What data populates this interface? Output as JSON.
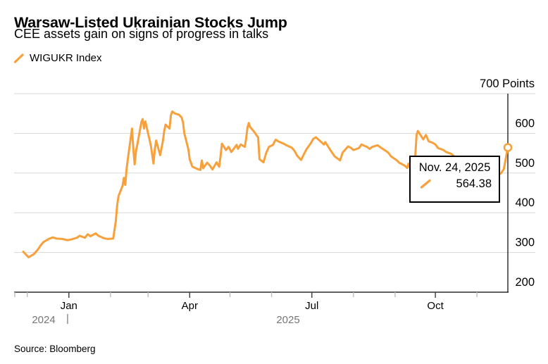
{
  "header": {
    "title": "Warsaw-Listed Ukrainian Stocks Jump",
    "subtitle": "CEE assets gain on signs of progress in talks"
  },
  "legend": {
    "series_label": "WIGUKR Index"
  },
  "tooltip": {
    "date": "Nov. 24, 2025",
    "value": "564.38"
  },
  "footer": {
    "source": "Source: Bloomberg"
  },
  "colors": {
    "line": "#F8A13C",
    "grid": "#D8D8D8",
    "axis": "#2B2B2B",
    "major_tick": "#3C3C3C",
    "minor_tick": "#BDBDBD",
    "muted_text": "#767676",
    "crosshair": "#000000",
    "text": "#000000",
    "background": "#FFFFFF"
  },
  "chart_data": {
    "type": "line",
    "title": "Warsaw-Listed Ukrainian Stocks Jump",
    "subtitle": "CEE assets gain on signs of progress in talks",
    "source": "Source: Bloomberg",
    "legend_position": "top-left",
    "grid": true,
    "unit": "Points",
    "ylim": [
      200,
      700
    ],
    "y_axis": {
      "ticks": [
        {
          "value": 700,
          "label": "700 Points"
        },
        {
          "value": 600,
          "label": "600"
        },
        {
          "value": 500,
          "label": "500"
        },
        {
          "value": 400,
          "label": "400"
        },
        {
          "value": 300,
          "label": "300"
        },
        {
          "value": 200,
          "label": "200"
        }
      ]
    },
    "x_axis": {
      "range": [
        "2024-11-28",
        "2025-11-24"
      ],
      "ticks": [
        {
          "date": "2024-12-01"
        },
        {
          "date": "2025-01-01",
          "label": "Jan"
        },
        {
          "date": "2025-02-01"
        },
        {
          "date": "2025-03-01"
        },
        {
          "date": "2025-04-01",
          "label": "Apr"
        },
        {
          "date": "2025-05-01"
        },
        {
          "date": "2025-06-01"
        },
        {
          "date": "2025-07-01",
          "label": "Jul"
        },
        {
          "date": "2025-08-01"
        },
        {
          "date": "2025-09-01"
        },
        {
          "date": "2025-10-01",
          "label": "Oct"
        },
        {
          "date": "2025-11-01"
        }
      ],
      "year_labels": {
        "left": "2024",
        "divider": "|",
        "right": "2025"
      }
    },
    "last_point": {
      "date": "2025-11-24",
      "value": 564.38
    },
    "series": [
      {
        "name": "WIGUKR Index",
        "points": [
          [
            "2024-11-28",
            302
          ],
          [
            "2024-12-02",
            288
          ],
          [
            "2024-12-04",
            292
          ],
          [
            "2024-12-06",
            296
          ],
          [
            "2024-12-09",
            308
          ],
          [
            "2024-12-11",
            318
          ],
          [
            "2024-12-13",
            326
          ],
          [
            "2024-12-17",
            334
          ],
          [
            "2024-12-20",
            338
          ],
          [
            "2024-12-23",
            335
          ],
          [
            "2024-12-27",
            334
          ],
          [
            "2024-12-31",
            331
          ],
          [
            "2025-01-03",
            333
          ],
          [
            "2025-01-07",
            337
          ],
          [
            "2025-01-09",
            342
          ],
          [
            "2025-01-13",
            337
          ],
          [
            "2025-01-15",
            346
          ],
          [
            "2025-01-17",
            341
          ],
          [
            "2025-01-21",
            348
          ],
          [
            "2025-01-23",
            342
          ],
          [
            "2025-01-27",
            336
          ],
          [
            "2025-01-30",
            334
          ],
          [
            "2025-02-03",
            335
          ],
          [
            "2025-02-05",
            380
          ],
          [
            "2025-02-06",
            420
          ],
          [
            "2025-02-07",
            442
          ],
          [
            "2025-02-10",
            468
          ],
          [
            "2025-02-11",
            488
          ],
          [
            "2025-02-12",
            470
          ],
          [
            "2025-02-13",
            510
          ],
          [
            "2025-02-14",
            538
          ],
          [
            "2025-02-17",
            612
          ],
          [
            "2025-02-18",
            560
          ],
          [
            "2025-02-19",
            522
          ],
          [
            "2025-02-20",
            556
          ],
          [
            "2025-02-21",
            572
          ],
          [
            "2025-02-24",
            628
          ],
          [
            "2025-02-25",
            636
          ],
          [
            "2025-02-26",
            612
          ],
          [
            "2025-02-27",
            630
          ],
          [
            "2025-02-28",
            615
          ],
          [
            "2025-03-03",
            570
          ],
          [
            "2025-03-05",
            524
          ],
          [
            "2025-03-06",
            560
          ],
          [
            "2025-03-07",
            582
          ],
          [
            "2025-03-10",
            545
          ],
          [
            "2025-03-12",
            580
          ],
          [
            "2025-03-13",
            605
          ],
          [
            "2025-03-14",
            622
          ],
          [
            "2025-03-17",
            612
          ],
          [
            "2025-03-18",
            645
          ],
          [
            "2025-03-19",
            655
          ],
          [
            "2025-03-21",
            650
          ],
          [
            "2025-03-24",
            647
          ],
          [
            "2025-03-26",
            640
          ],
          [
            "2025-03-27",
            628
          ],
          [
            "2025-03-28",
            600
          ],
          [
            "2025-03-31",
            560
          ],
          [
            "2025-04-01",
            535
          ],
          [
            "2025-04-03",
            516
          ],
          [
            "2025-04-07",
            510
          ],
          [
            "2025-04-09",
            508
          ],
          [
            "2025-04-10",
            532
          ],
          [
            "2025-04-11",
            512
          ],
          [
            "2025-04-14",
            526
          ],
          [
            "2025-04-16",
            519
          ],
          [
            "2025-04-18",
            509
          ],
          [
            "2025-04-21",
            527
          ],
          [
            "2025-04-23",
            516
          ],
          [
            "2025-04-24",
            544
          ],
          [
            "2025-04-25",
            574
          ],
          [
            "2025-04-28",
            558
          ],
          [
            "2025-04-30",
            566
          ],
          [
            "2025-05-02",
            553
          ],
          [
            "2025-05-06",
            571
          ],
          [
            "2025-05-07",
            561
          ],
          [
            "2025-05-09",
            572
          ],
          [
            "2025-05-12",
            566
          ],
          [
            "2025-05-13",
            586
          ],
          [
            "2025-05-14",
            614
          ],
          [
            "2025-05-15",
            626
          ],
          [
            "2025-05-16",
            616
          ],
          [
            "2025-05-19",
            604
          ],
          [
            "2025-05-21",
            594
          ],
          [
            "2025-05-22",
            590
          ],
          [
            "2025-05-23",
            535
          ],
          [
            "2025-05-26",
            527
          ],
          [
            "2025-05-28",
            551
          ],
          [
            "2025-05-30",
            566
          ],
          [
            "2025-06-02",
            571
          ],
          [
            "2025-06-04",
            584
          ],
          [
            "2025-06-06",
            580
          ],
          [
            "2025-06-10",
            574
          ],
          [
            "2025-06-12",
            570
          ],
          [
            "2025-06-16",
            564
          ],
          [
            "2025-06-18",
            556
          ],
          [
            "2025-06-20",
            544
          ],
          [
            "2025-06-23",
            533
          ],
          [
            "2025-06-25",
            547
          ],
          [
            "2025-06-27",
            560
          ],
          [
            "2025-06-30",
            574
          ],
          [
            "2025-07-02",
            586
          ],
          [
            "2025-07-04",
            590
          ],
          [
            "2025-07-08",
            578
          ],
          [
            "2025-07-10",
            572
          ],
          [
            "2025-07-11",
            578
          ],
          [
            "2025-07-15",
            557
          ],
          [
            "2025-07-18",
            542
          ],
          [
            "2025-07-22",
            532
          ],
          [
            "2025-07-24",
            552
          ],
          [
            "2025-07-28",
            567
          ],
          [
            "2025-07-30",
            564
          ],
          [
            "2025-08-01",
            558
          ],
          [
            "2025-08-05",
            563
          ],
          [
            "2025-08-07",
            572
          ],
          [
            "2025-08-11",
            566
          ],
          [
            "2025-08-13",
            561
          ],
          [
            "2025-08-15",
            566
          ],
          [
            "2025-08-19",
            570
          ],
          [
            "2025-08-21",
            565
          ],
          [
            "2025-08-25",
            556
          ],
          [
            "2025-08-27",
            551
          ],
          [
            "2025-08-29",
            542
          ],
          [
            "2025-09-02",
            533
          ],
          [
            "2025-09-04",
            526
          ],
          [
            "2025-09-08",
            519
          ],
          [
            "2025-09-10",
            513
          ],
          [
            "2025-09-11",
            524
          ],
          [
            "2025-09-12",
            514
          ],
          [
            "2025-09-15",
            511
          ],
          [
            "2025-09-16",
            540
          ],
          [
            "2025-09-17",
            596
          ],
          [
            "2025-09-18",
            606
          ],
          [
            "2025-09-22",
            585
          ],
          [
            "2025-09-24",
            596
          ],
          [
            "2025-09-26",
            580
          ],
          [
            "2025-09-29",
            576
          ],
          [
            "2025-10-01",
            572
          ],
          [
            "2025-10-03",
            563
          ],
          [
            "2025-10-07",
            558
          ],
          [
            "2025-10-09",
            553
          ],
          [
            "2025-10-13",
            548
          ],
          [
            "2025-10-15",
            542
          ],
          [
            "2025-10-17",
            536
          ],
          [
            "2025-10-21",
            528
          ],
          [
            "2025-10-23",
            518
          ],
          [
            "2025-10-27",
            508
          ],
          [
            "2025-10-29",
            500
          ],
          [
            "2025-10-31",
            492
          ],
          [
            "2025-11-04",
            486
          ],
          [
            "2025-11-06",
            480
          ],
          [
            "2025-11-10",
            484
          ],
          [
            "2025-11-12",
            478
          ],
          [
            "2025-11-14",
            488
          ],
          [
            "2025-11-17",
            495
          ],
          [
            "2025-11-19",
            500
          ],
          [
            "2025-11-21",
            510
          ],
          [
            "2025-11-24",
            564.38
          ]
        ]
      }
    ]
  }
}
